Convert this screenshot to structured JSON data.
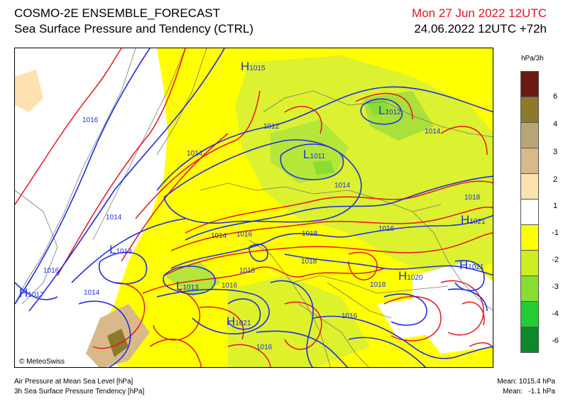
{
  "header": {
    "title": "COSMO-2E ENSEMBLE_FORECAST",
    "subtitle": "Sea Surface Pressure and Tendency (CTRL)",
    "valid_time": "Mon 27 Jun 2022 12UTC",
    "run_time": "24.06.2022 12UTC +72h"
  },
  "colors": {
    "valid_time": "#e8141e",
    "isobar": "#1f2fe0",
    "tendency_contour": "#e8141e",
    "border": "#777777"
  },
  "legend": {
    "unit": "hPa/3h",
    "boxes": [
      {
        "color": "#6b1a10",
        "label": "6"
      },
      {
        "color": "#8c7a2a",
        "label": "4"
      },
      {
        "color": "#b8a679",
        "label": "3"
      },
      {
        "color": "#d9b98a",
        "label": "2"
      },
      {
        "color": "#fde2b0",
        "label": "1"
      },
      {
        "color": "#ffffff",
        "label": "-1"
      },
      {
        "color": "#ffff00",
        "label": "-2"
      },
      {
        "color": "#ccee22",
        "label": "-3"
      },
      {
        "color": "#88dd33",
        "label": "-4"
      },
      {
        "color": "#22cc33",
        "label": "-6"
      },
      {
        "color": "#0a8a2a",
        "label": ""
      }
    ]
  },
  "map": {
    "copyright": "© MeteoSwiss",
    "isobar_labels": [
      {
        "text": "1016",
        "id": "nw-1016"
      },
      {
        "text": "1014",
        "id": "n-1014"
      },
      {
        "text": "1012",
        "id": "c-1012"
      },
      {
        "text": "1014",
        "id": "ne-1014"
      },
      {
        "text": "1014",
        "id": "c2-1014"
      },
      {
        "text": "1014",
        "id": "w-1014"
      },
      {
        "text": "1014",
        "id": "cw-1014"
      },
      {
        "text": "1016",
        "id": "cw-1016"
      },
      {
        "text": "1018",
        "id": "c-1018"
      },
      {
        "text": "1018",
        "id": "e-1018"
      },
      {
        "text": "1016",
        "id": "e-1016"
      },
      {
        "text": "1018",
        "id": "c2-1018"
      },
      {
        "text": "1018",
        "id": "sw-1018"
      },
      {
        "text": "1016",
        "id": "w-1016"
      },
      {
        "text": "1014",
        "id": "sw-1014"
      },
      {
        "text": "1016",
        "id": "s-1016"
      },
      {
        "text": "1018",
        "id": "se-1018"
      },
      {
        "text": "1016",
        "id": "s2-1016"
      },
      {
        "text": "1016",
        "id": "s3-1016"
      }
    ],
    "pressure_centers": [
      {
        "type": "H",
        "value": "1015"
      },
      {
        "type": "L",
        "value": "1012"
      },
      {
        "type": "L",
        "value": "1011"
      },
      {
        "type": "H",
        "value": "1021"
      },
      {
        "type": "L",
        "value": "1013"
      },
      {
        "type": "H",
        "value": "1017"
      },
      {
        "type": "L",
        "value": "1013"
      },
      {
        "type": "H",
        "value": "1021"
      },
      {
        "type": "H",
        "value": "1020"
      },
      {
        "type": "H",
        "value": "1021"
      }
    ]
  },
  "footer": {
    "line1": "Air Pressure at Mean Sea Level [hPa]",
    "line2": "3h Sea Surface Pressure Tendency [hPa]",
    "mean_pressure": "Mean: 1015.4 hPa",
    "mean_tendency": "Mean:   -1.1 hPa"
  }
}
